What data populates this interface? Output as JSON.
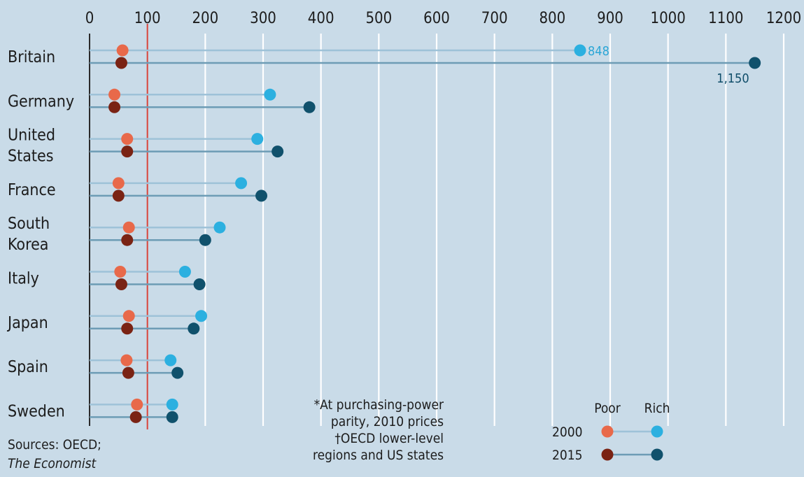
{
  "chart_data": {
    "type": "scatter",
    "xlim": [
      0,
      1200
    ],
    "x_ticks": [
      0,
      100,
      200,
      300,
      400,
      500,
      600,
      700,
      800,
      900,
      1000,
      1100,
      1200
    ],
    "reference_line": 100,
    "grid": true,
    "categories": [
      "Britain",
      "Germany",
      "United States",
      "France",
      "South Korea",
      "Italy",
      "Japan",
      "Spain",
      "Sweden"
    ],
    "category_labels": [
      [
        "Britain"
      ],
      [
        "Germany"
      ],
      [
        "United",
        "States"
      ],
      [
        "France"
      ],
      [
        "South",
        "Korea"
      ],
      [
        "Italy"
      ],
      [
        "Japan"
      ],
      [
        "Spain"
      ],
      [
        "Sweden"
      ]
    ],
    "series": [
      {
        "name": "Poor 2000",
        "group": "Poor",
        "year": "2000",
        "color": "#e8694a",
        "values": [
          57,
          43,
          65,
          50,
          68,
          53,
          68,
          64,
          82
        ]
      },
      {
        "name": "Rich 2000",
        "group": "Rich",
        "year": "2000",
        "color": "#2cb0e0",
        "values": [
          848,
          312,
          290,
          262,
          225,
          165,
          193,
          140,
          143
        ]
      },
      {
        "name": "Poor 2015",
        "group": "Poor",
        "year": "2015",
        "color": "#7a2314",
        "values": [
          55,
          43,
          65,
          50,
          65,
          55,
          65,
          67,
          80
        ]
      },
      {
        "name": "Rich 2015",
        "group": "Rich",
        "year": "2015",
        "color": "#10516c",
        "values": [
          1150,
          380,
          325,
          297,
          200,
          190,
          180,
          152,
          143
        ]
      }
    ],
    "data_labels": [
      {
        "category": "Britain",
        "series": "Rich 2000",
        "text": "848"
      },
      {
        "category": "Britain",
        "series": "Rich 2015",
        "text": "1,150"
      }
    ],
    "legend": {
      "placement": "bottom-right",
      "columns": [
        "Poor",
        "Rich"
      ],
      "rows": [
        "2000",
        "2015"
      ]
    },
    "footnote": [
      "*At purchasing-power",
      "parity, 2010 prices",
      "†OECD lower-level",
      "regions and US states"
    ],
    "source": [
      "Sources: OECD;",
      "The Economist"
    ]
  },
  "colors": {
    "background": "#c9dbe8",
    "gridline": "#ffffff",
    "reference": "#d9433a",
    "connector_2000": "#9ec2d8",
    "connector_2015": "#6d9cb5",
    "axis": "#2a2a2a",
    "label_848": "#2aa6d6",
    "label_1150": "#0f4d69"
  }
}
